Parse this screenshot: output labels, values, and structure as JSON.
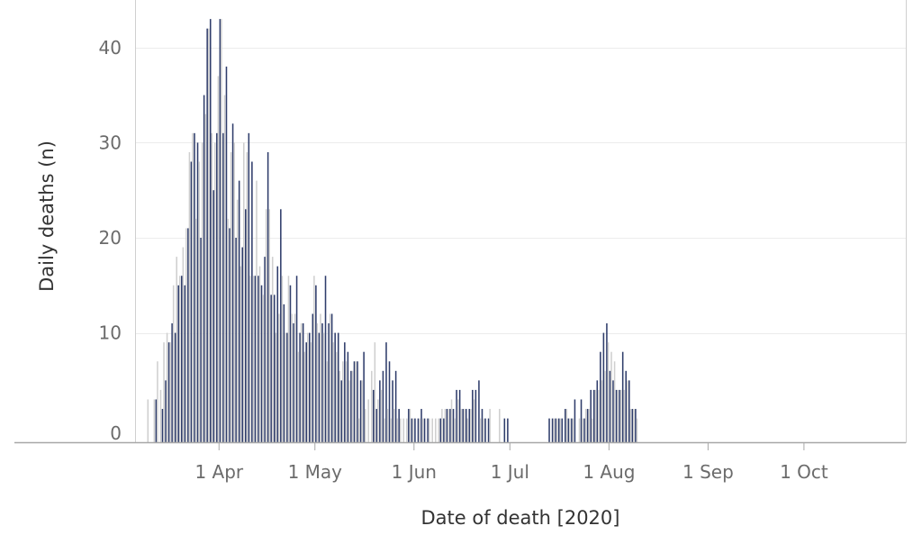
{
  "chart_data": {
    "type": "bar",
    "xlabel": "Date of death [2020]",
    "ylabel": "Daily deaths (n)",
    "ylim": [
      -1.5,
      45
    ],
    "x_start_date": "2020-03-07",
    "x_ticks": [
      {
        "label": "1 Apr",
        "date": "2020-04-01"
      },
      {
        "label": "1 May",
        "date": "2020-05-01"
      },
      {
        "label": "1 Jun",
        "date": "2020-06-01"
      },
      {
        "label": "1 Jul",
        "date": "2020-07-01"
      },
      {
        "label": "1 Aug",
        "date": "2020-08-01"
      },
      {
        "label": "1 Sep",
        "date": "2020-09-01"
      },
      {
        "label": "1 Oct",
        "date": "2020-10-01"
      }
    ],
    "y_ticks": [
      0,
      10,
      20,
      30,
      40
    ],
    "grid": true,
    "series": [
      {
        "color": "#2f3d6b",
        "values": [
          0,
          0,
          0,
          3,
          0,
          2,
          5,
          9,
          11,
          10,
          15,
          16,
          15,
          21,
          28,
          31,
          30,
          20,
          35,
          42,
          43,
          25,
          31,
          43,
          31,
          38,
          21,
          32,
          20,
          26,
          19,
          23,
          31,
          28,
          16,
          16,
          15,
          18,
          29,
          14,
          14,
          17,
          23,
          13,
          10,
          15,
          11,
          16,
          10,
          11,
          9,
          10,
          12,
          15,
          10,
          11,
          16,
          11,
          12,
          10,
          10,
          5,
          9,
          8,
          6,
          7,
          7,
          5,
          8,
          0,
          0,
          4,
          2,
          5,
          6,
          9,
          7,
          5,
          6,
          2,
          0,
          0,
          2,
          1,
          1,
          1,
          2,
          1,
          1,
          0,
          0,
          0,
          1,
          1,
          2,
          2,
          2,
          4,
          4,
          2,
          2,
          2,
          4,
          4,
          5,
          2,
          1,
          1,
          0,
          0,
          0,
          0,
          1,
          1,
          0,
          0,
          0,
          0,
          0,
          0,
          0,
          0,
          0,
          0,
          0,
          0,
          1,
          1,
          1,
          1,
          1,
          2,
          1,
          1,
          3,
          0,
          3,
          1,
          2,
          4,
          4,
          5,
          8,
          10,
          11,
          6,
          5,
          4,
          4,
          8,
          6,
          5,
          2,
          2
        ]
      },
      {
        "color": "#cfcfcf",
        "values": [
          3,
          0,
          3,
          7,
          4,
          9,
          10,
          9,
          15,
          18,
          16,
          19,
          21,
          29,
          31,
          22,
          28,
          30,
          33,
          42,
          31,
          30,
          37,
          43,
          35,
          22,
          29,
          30,
          24,
          17,
          30,
          29,
          16,
          16,
          26,
          17,
          14,
          23,
          23,
          18,
          10,
          12,
          16,
          10,
          16,
          12,
          12,
          8,
          11,
          8,
          10,
          9,
          16,
          11,
          12,
          10,
          7,
          12,
          9,
          8,
          6,
          7,
          7,
          5,
          6,
          7,
          1,
          5,
          2,
          3,
          6,
          9,
          3,
          4,
          1,
          2,
          1,
          2,
          1,
          1,
          1,
          1,
          2,
          1,
          0,
          1,
          1,
          0,
          1,
          1,
          1,
          1,
          2,
          2,
          2,
          3,
          1,
          3,
          2,
          2,
          1,
          2,
          3,
          0,
          1,
          1,
          0,
          2,
          0,
          0,
          2,
          0,
          0,
          0,
          0,
          0,
          0,
          0,
          0,
          0,
          0,
          0,
          0,
          0,
          0,
          0,
          0,
          1,
          1,
          1,
          0,
          2,
          1,
          1,
          0,
          1,
          1,
          2,
          2,
          1,
          4,
          4,
          5,
          6,
          9,
          8,
          7,
          4,
          4,
          4,
          5,
          2,
          2,
          1
        ]
      }
    ]
  }
}
